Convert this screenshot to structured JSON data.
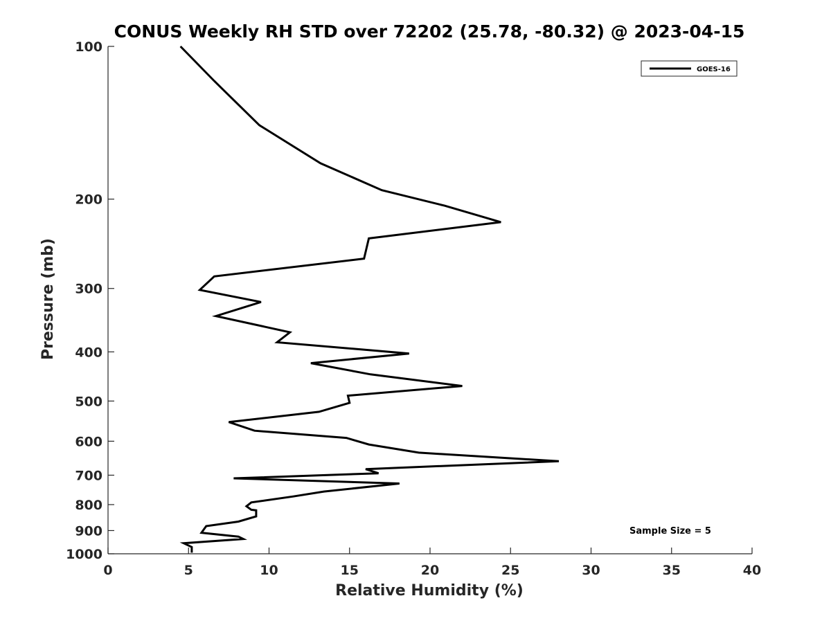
{
  "chart_data": {
    "type": "line",
    "title": "CONUS Weekly RH STD over 72202 (25.78, -80.32) @ 2023-04-15",
    "xlabel": "Relative Humidity (%)",
    "ylabel": "Pressure (mb)",
    "xlim": [
      0,
      40
    ],
    "ylim": [
      100,
      1000
    ],
    "yscale": "log",
    "yreversed": true,
    "xticks": [
      "0",
      "5",
      "10",
      "15",
      "20",
      "25",
      "30",
      "35",
      "40"
    ],
    "yticks": [
      "100",
      "200",
      "300",
      "400",
      "500",
      "600",
      "700",
      "800",
      "900",
      "1000"
    ],
    "grid": false,
    "legend_position": "top-right",
    "series": [
      {
        "name": "GOES-16",
        "color": "#000000",
        "points": [
          [
            4.5,
            100
          ],
          [
            6.6,
            117
          ],
          [
            9.4,
            143
          ],
          [
            13.2,
            170
          ],
          [
            17,
            192
          ],
          [
            20.9,
            206
          ],
          [
            24.4,
            222
          ],
          [
            16.2,
            239
          ],
          [
            15.9,
            262
          ],
          [
            6.6,
            284
          ],
          [
            5.7,
            302
          ],
          [
            9.5,
            319
          ],
          [
            6.7,
            340
          ],
          [
            11.3,
            366
          ],
          [
            10.5,
            383
          ],
          [
            18.7,
            403
          ],
          [
            12.6,
            421
          ],
          [
            16.3,
            443
          ],
          [
            22,
            467
          ],
          [
            14.9,
            488
          ],
          [
            15,
            504
          ],
          [
            13.1,
            525
          ],
          [
            7.5,
            550
          ],
          [
            9.1,
            572
          ],
          [
            14.8,
            591
          ],
          [
            16.2,
            609
          ],
          [
            19.3,
            632
          ],
          [
            28,
            657
          ],
          [
            16,
            681
          ],
          [
            16.8,
            694
          ],
          [
            7.8,
            710
          ],
          [
            18.1,
            727
          ],
          [
            13.4,
            754
          ],
          [
            11.5,
            771
          ],
          [
            8.9,
            792
          ],
          [
            8.6,
            806
          ],
          [
            8.9,
            819
          ],
          [
            9.2,
            821
          ],
          [
            9.2,
            844
          ],
          [
            8.1,
            864
          ],
          [
            6.1,
            882
          ],
          [
            5.8,
            909
          ],
          [
            8.1,
            925
          ],
          [
            8.4,
            935
          ],
          [
            4.7,
            953
          ],
          [
            5.2,
            970
          ],
          [
            5.2,
            995
          ]
        ]
      }
    ],
    "annotations": [
      "Sample Size = 5"
    ]
  }
}
